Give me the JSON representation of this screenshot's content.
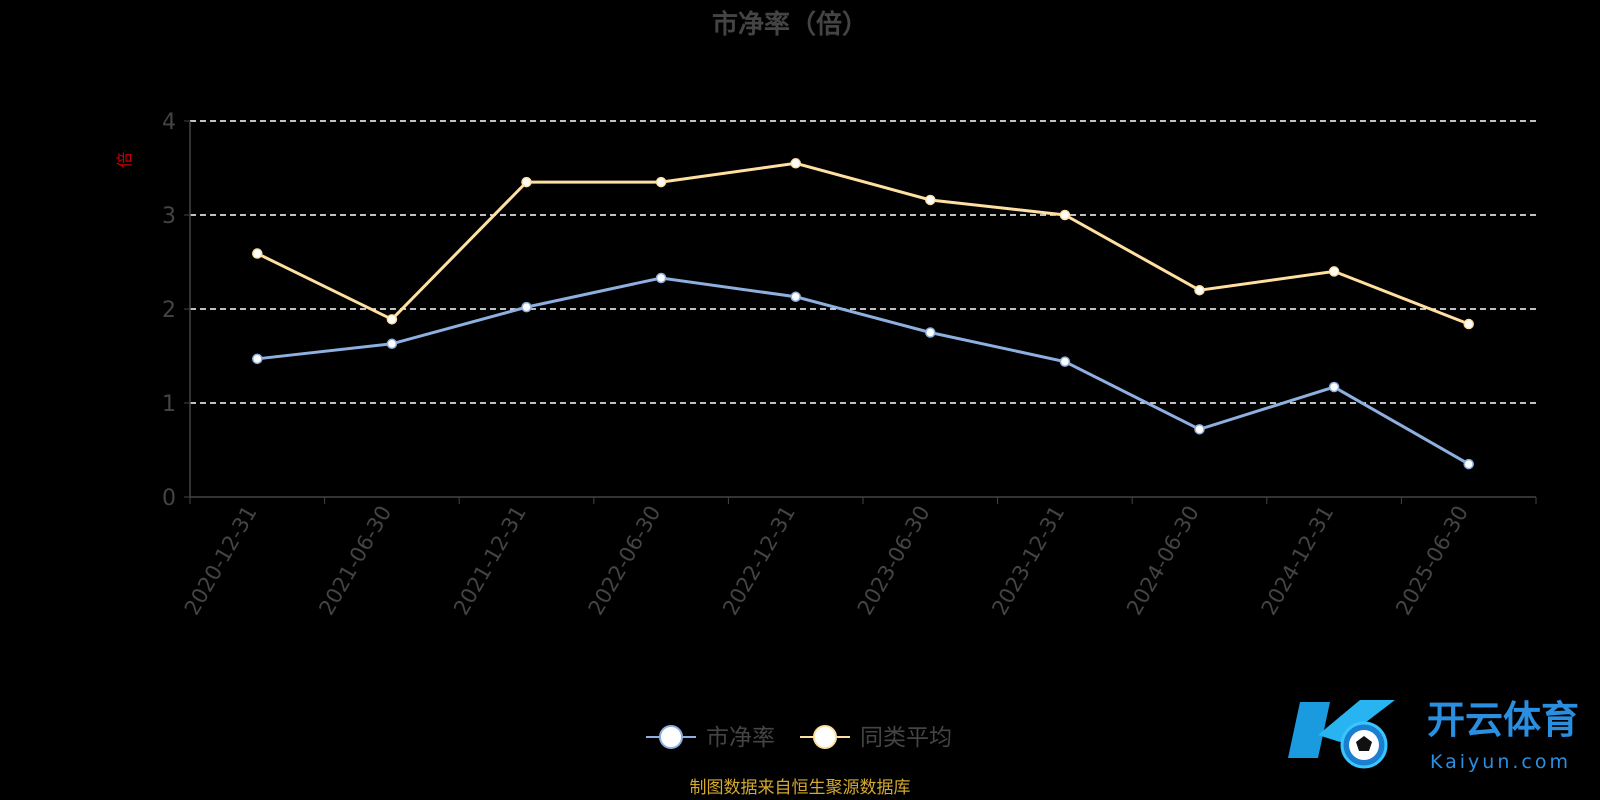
{
  "chart_data": {
    "type": "line",
    "title": "市净率（倍）",
    "ylabel": "倍",
    "ylim": [
      0,
      4
    ],
    "yticks": [
      "0",
      "1",
      "2",
      "3",
      "4"
    ],
    "categories": [
      "2020-12-31",
      "2021-06-30",
      "2021-12-31",
      "2022-06-30",
      "2022-12-31",
      "2023-06-30",
      "2023-12-31",
      "2024-06-30",
      "2024-12-31",
      "2025-06-30"
    ],
    "grid": true,
    "legend_position": "bottom-center",
    "series": [
      {
        "name": "市净率",
        "color": "#8eb0e0",
        "values": [
          1.47,
          1.63,
          2.02,
          2.33,
          2.13,
          1.75,
          1.44,
          0.72,
          1.17,
          0.35
        ]
      },
      {
        "name": "同类平均",
        "color": "#ffe0a0",
        "values": [
          2.59,
          1.89,
          3.35,
          3.35,
          3.55,
          3.16,
          3.0,
          2.2,
          2.4,
          1.84
        ]
      }
    ]
  },
  "source_note": "制图数据来自恒生聚源数据库",
  "watermark": {
    "brand_cn": "开云体育",
    "brand_en": "Kaiyun.com"
  },
  "colors": {
    "axis_text": "#444444",
    "grid": "#ffffff",
    "ylabel": "#cc0000",
    "source": "#d4a830",
    "title": "#444444"
  }
}
